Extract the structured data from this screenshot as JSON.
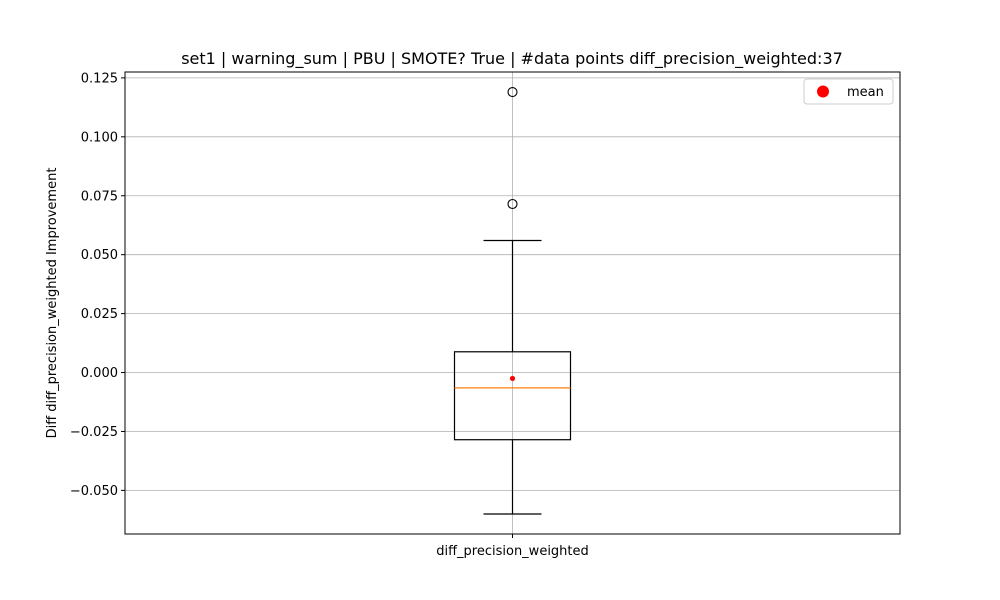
{
  "chart_data": {
    "type": "box",
    "title": "set1 | warning_sum | PBU | SMOTE? True | #data points diff_precision_weighted:37",
    "xlabel": "",
    "ylabel": "Diff diff_precision_weighted Improvement",
    "categories": [
      "diff_precision_weighted"
    ],
    "ylim": [
      -0.0685,
      0.1275
    ],
    "yticks": [
      -0.05,
      -0.025,
      0.0,
      0.025,
      0.05,
      0.075,
      0.1,
      0.125
    ],
    "ytick_labels": [
      "−0.050",
      "−0.025",
      "0.000",
      "0.025",
      "0.050",
      "0.075",
      "0.100",
      "0.125"
    ],
    "grid": true,
    "legend": {
      "position": "top-right",
      "entries": [
        {
          "label": "mean",
          "color": "#ff0000",
          "marker": "circle"
        }
      ]
    },
    "boxes": [
      {
        "name": "diff_precision_weighted",
        "whisker_low": -0.06,
        "q1": -0.0285,
        "median": -0.0065,
        "q3": 0.0088,
        "whisker_high": 0.056,
        "mean": -0.0025,
        "outliers": [
          0.119,
          0.0715
        ]
      }
    ],
    "colors": {
      "box": "#000000",
      "median": "#ff7f0e",
      "mean": "#ff0000",
      "grid": "#b0b0b0"
    }
  }
}
